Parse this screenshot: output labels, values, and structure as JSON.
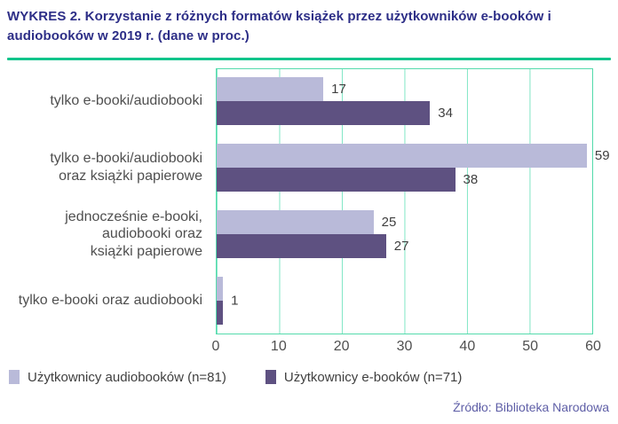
{
  "title": "WYKRES 2. Korzystanie z różnych formatów książek przez użytkowników e-booków i audiobooków w 2019 r. (dane w proc.)",
  "source": "Źródło: Biblioteka Narodowa",
  "colors": {
    "title_text": "#2d2e87",
    "divider": "#10c48b",
    "plot_border": "#55dbac",
    "gridline": "#80e6c5",
    "category_text": "#4f4f4f",
    "value_text": "#3f3f3f",
    "source_text": "#5f5fa7"
  },
  "chart_data": {
    "type": "bar",
    "orientation": "horizontal",
    "title": "WYKRES 2. Korzystanie z różnych formatów książek przez użytkowników e-booków i audiobooków w 2019 r. (dane w proc.)",
    "categories": [
      "tylko e-booki/audiobooki",
      "tylko e-booki/audiobooki\noraz książki papierowe",
      "jednocześnie e-booki,\naudiobooki oraz\nksiążki papierowe",
      "tylko e-booki oraz audiobooki"
    ],
    "series": [
      {
        "name": "Użytkownicy audiobooków (n=81)",
        "color": "#b9bad9",
        "values": [
          17,
          59,
          25,
          1
        ]
      },
      {
        "name": "Użytkownicy e-booków (n=71)",
        "color": "#5e5181",
        "values": [
          34,
          38,
          27,
          1
        ]
      }
    ],
    "xlim": [
      0,
      60
    ],
    "xticks": [
      0,
      10,
      20,
      30,
      40,
      50,
      60
    ],
    "grid": true,
    "legend_position": "bottom",
    "value_labels": true,
    "shared_value_label_groups": [
      3
    ]
  }
}
